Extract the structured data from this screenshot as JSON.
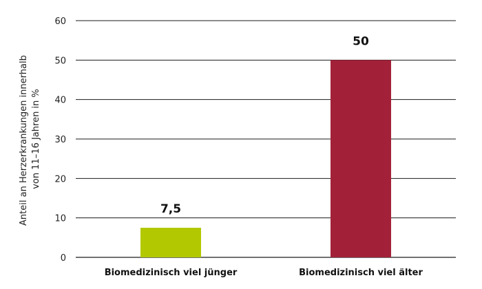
{
  "chart_data": {
    "type": "bar",
    "categories": [
      "Biomedizinisch viel jünger",
      "Biomedizinisch viel älter"
    ],
    "values": [
      7.5,
      50
    ],
    "value_labels": [
      "7,5",
      "50"
    ],
    "colors": [
      "#b2c800",
      "#a32138"
    ],
    "ylabel_lines": [
      "Anteil an Herzerkrankungen innerhalb",
      "von 11–16 Jahren in %"
    ],
    "ylim": [
      0,
      60
    ],
    "yticks": [
      0,
      10,
      20,
      30,
      40,
      50,
      60
    ],
    "grid": true
  }
}
